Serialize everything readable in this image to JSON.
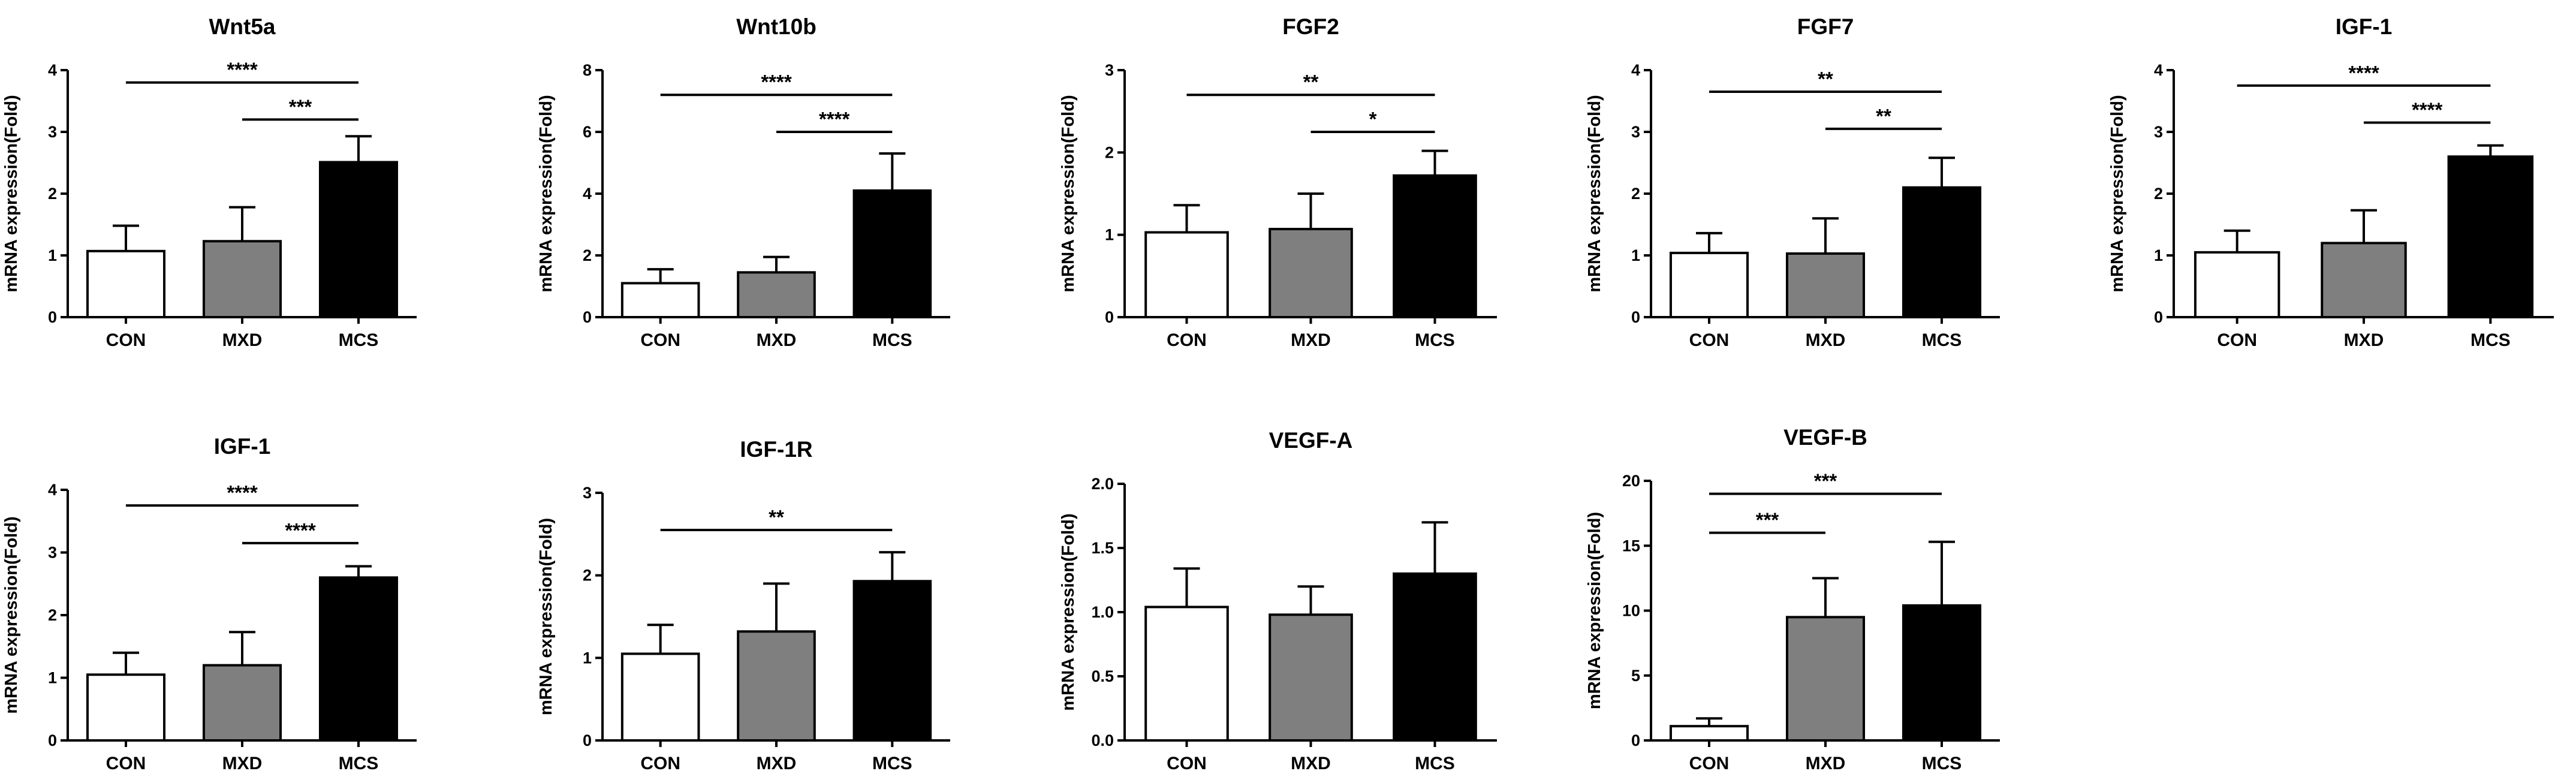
{
  "chart_data": [
    {
      "type": "bar",
      "title": "Wnt5a",
      "xlabel": "",
      "ylabel": "mRNA expression(Fold)",
      "categories": [
        "CON",
        "MXD",
        "MCS"
      ],
      "values": [
        1.07,
        1.23,
        2.51
      ],
      "errors": [
        0.41,
        0.55,
        0.42
      ],
      "colors": [
        "#ffffff",
        "#7f7f7f",
        "#000000"
      ],
      "ylim": [
        0,
        4
      ],
      "yticks": [
        0,
        1,
        2,
        3,
        4
      ],
      "tick_labels": [
        "0",
        "1",
        "2",
        "3",
        "4"
      ],
      "significance": [
        {
          "from": "CON",
          "to": "MCS",
          "label": "****",
          "y": 3.8
        },
        {
          "from": "MXD",
          "to": "MCS",
          "label": "***",
          "y": 3.2
        }
      ]
    },
    {
      "type": "bar",
      "title": "Wnt10b",
      "xlabel": "",
      "ylabel": "mRNA expression(Fold)",
      "categories": [
        "CON",
        "MXD",
        "MCS"
      ],
      "values": [
        1.1,
        1.45,
        4.1
      ],
      "errors": [
        0.45,
        0.5,
        1.2
      ],
      "colors": [
        "#ffffff",
        "#7f7f7f",
        "#000000"
      ],
      "ylim": [
        0,
        8
      ],
      "yticks": [
        0,
        2,
        4,
        6,
        8
      ],
      "tick_labels": [
        "0",
        "2",
        "4",
        "6",
        "8"
      ],
      "significance": [
        {
          "from": "CON",
          "to": "MCS",
          "label": "****",
          "y": 7.2
        },
        {
          "from": "MXD",
          "to": "MCS",
          "label": "****",
          "y": 6.0
        }
      ]
    },
    {
      "type": "bar",
      "title": "FGF2",
      "xlabel": "",
      "ylabel": "mRNA expression(Fold)",
      "categories": [
        "CON",
        "MXD",
        "MCS"
      ],
      "values": [
        1.03,
        1.07,
        1.72
      ],
      "errors": [
        0.33,
        0.43,
        0.3
      ],
      "colors": [
        "#ffffff",
        "#7f7f7f",
        "#000000"
      ],
      "ylim": [
        0,
        3
      ],
      "yticks": [
        0,
        1,
        2,
        3
      ],
      "tick_labels": [
        "0",
        "1",
        "2",
        "3"
      ],
      "significance": [
        {
          "from": "CON",
          "to": "MCS",
          "label": "**",
          "y": 2.7
        },
        {
          "from": "MXD",
          "to": "MCS",
          "label": "*",
          "y": 2.25
        }
      ]
    },
    {
      "type": "bar",
      "title": "FGF7",
      "xlabel": "",
      "ylabel": "mRNA expression(Fold)",
      "categories": [
        "CON",
        "MXD",
        "MCS"
      ],
      "values": [
        1.04,
        1.03,
        2.1
      ],
      "errors": [
        0.32,
        0.57,
        0.48
      ],
      "colors": [
        "#ffffff",
        "#7f7f7f",
        "#000000"
      ],
      "ylim": [
        0,
        4
      ],
      "yticks": [
        0,
        1,
        2,
        3,
        4
      ],
      "tick_labels": [
        "0",
        "1",
        "2",
        "3",
        "4"
      ],
      "significance": [
        {
          "from": "CON",
          "to": "MCS",
          "label": "**",
          "y": 3.65
        },
        {
          "from": "MXD",
          "to": "MCS",
          "label": "**",
          "y": 3.05
        }
      ]
    },
    {
      "type": "bar",
      "title": "IGF-1",
      "xlabel": "",
      "ylabel": "mRNA expression(Fold)",
      "categories": [
        "CON",
        "MXD",
        "MCS"
      ],
      "values": [
        1.05,
        1.2,
        2.6
      ],
      "errors": [
        0.35,
        0.53,
        0.18
      ],
      "colors": [
        "#ffffff",
        "#7f7f7f",
        "#000000"
      ],
      "ylim": [
        0,
        4
      ],
      "yticks": [
        0,
        1,
        2,
        3,
        4
      ],
      "tick_labels": [
        "0",
        "1",
        "2",
        "3",
        "4"
      ],
      "significance": [
        {
          "from": "CON",
          "to": "MCS",
          "label": "****",
          "y": 3.75
        },
        {
          "from": "MXD",
          "to": "MCS",
          "label": "****",
          "y": 3.15
        }
      ]
    },
    {
      "type": "bar",
      "title": "IGF-1",
      "xlabel": "",
      "ylabel": "mRNA expression(Fold)",
      "categories": [
        "CON",
        "MXD",
        "MCS"
      ],
      "values": [
        1.05,
        1.2,
        2.6
      ],
      "errors": [
        0.35,
        0.53,
        0.18
      ],
      "colors": [
        "#ffffff",
        "#7f7f7f",
        "#000000"
      ],
      "ylim": [
        0,
        4
      ],
      "yticks": [
        0,
        1,
        2,
        3,
        4
      ],
      "tick_labels": [
        "0",
        "1",
        "2",
        "3",
        "4"
      ],
      "significance": [
        {
          "from": "CON",
          "to": "MCS",
          "label": "****",
          "y": 3.75
        },
        {
          "from": "MXD",
          "to": "MCS",
          "label": "****",
          "y": 3.15
        }
      ]
    },
    {
      "type": "bar",
      "title": "IGF-1R",
      "xlabel": "",
      "ylabel": "mRNA expression(Fold)",
      "categories": [
        "CON",
        "MXD",
        "MCS"
      ],
      "values": [
        1.05,
        1.32,
        1.93
      ],
      "errors": [
        0.35,
        0.58,
        0.35
      ],
      "colors": [
        "#ffffff",
        "#7f7f7f",
        "#000000"
      ],
      "ylim": [
        0,
        3
      ],
      "yticks": [
        0,
        1,
        2,
        3
      ],
      "tick_labels": [
        "0",
        "1",
        "2",
        "3"
      ],
      "significance": [
        {
          "from": "CON",
          "to": "MCS",
          "label": "**",
          "y": 2.55
        }
      ]
    },
    {
      "type": "bar",
      "title": "VEGF-A",
      "xlabel": "",
      "ylabel": "mRNA expression(Fold)",
      "categories": [
        "CON",
        "MXD",
        "MCS"
      ],
      "values": [
        1.04,
        0.98,
        1.3
      ],
      "errors": [
        0.3,
        0.22,
        0.4
      ],
      "colors": [
        "#ffffff",
        "#7f7f7f",
        "#000000"
      ],
      "ylim": [
        0,
        2.0
      ],
      "yticks": [
        0,
        0.5,
        1.0,
        1.5,
        2.0
      ],
      "tick_labels": [
        "0.0",
        "0.5",
        "1.0",
        "1.5",
        "2.0"
      ],
      "significance": []
    },
    {
      "type": "bar",
      "title": "VEGF-B",
      "xlabel": "",
      "ylabel": "mRNA expression(Fold)",
      "categories": [
        "CON",
        "MXD",
        "MCS"
      ],
      "values": [
        1.1,
        9.5,
        10.4
      ],
      "errors": [
        0.6,
        3.0,
        4.9
      ],
      "colors": [
        "#ffffff",
        "#7f7f7f",
        "#000000"
      ],
      "ylim": [
        0,
        20
      ],
      "yticks": [
        0,
        5,
        10,
        15,
        20
      ],
      "tick_labels": [
        "0",
        "5",
        "10",
        "15",
        "20"
      ],
      "significance": [
        {
          "from": "CON",
          "to": "MCS",
          "label": "***",
          "y": 19.0
        },
        {
          "from": "CON",
          "to": "MXD",
          "label": "***",
          "y": 16.0
        }
      ]
    }
  ]
}
